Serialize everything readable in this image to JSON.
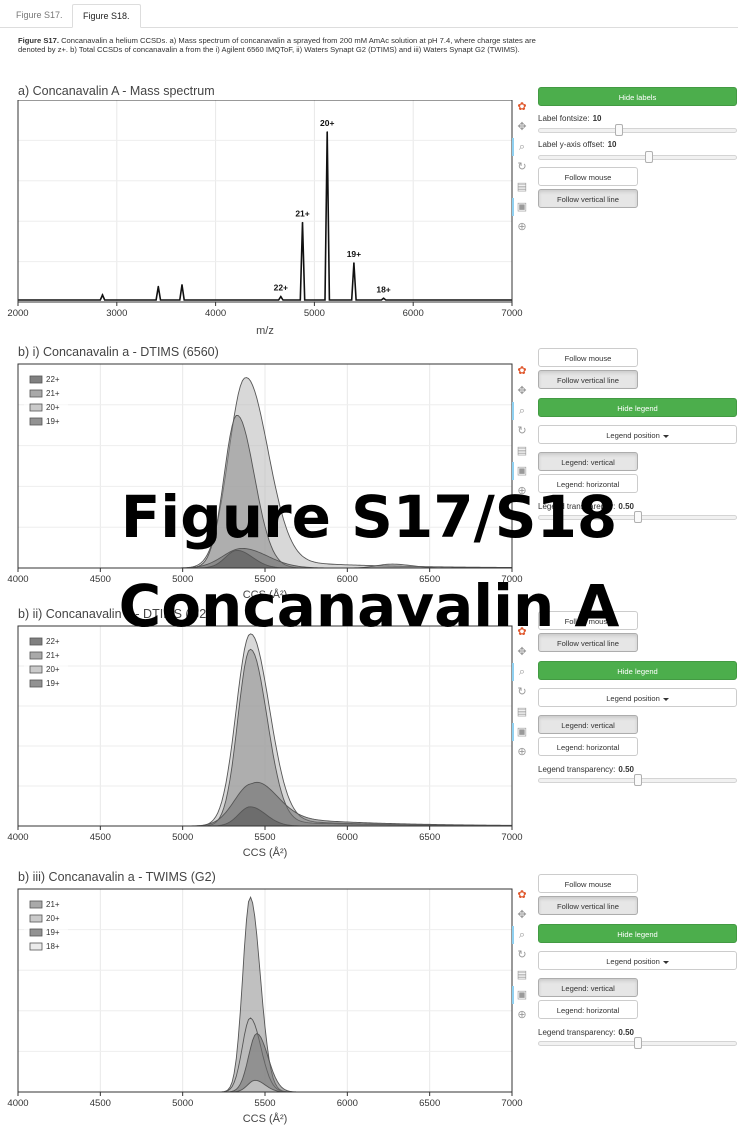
{
  "tabs": [
    {
      "label": "Figure S17."
    },
    {
      "label": "Figure S18."
    }
  ],
  "caption": {
    "lead": "Figure S17.",
    "text": "Concanavalin a helium CCSDs. a) Mass spectrum of concanavalin a sprayed from 200 mM AmAc solution at pH 7.4, where charge states are denoted by z+. b) Total CCSDs of concanavalin a from the i) Agilent 6560 IMQToF, ii) Waters Synapt G2 (DTIMS) and iii) Waters Synapt G2 (TWIMS)."
  },
  "overlay": {
    "line1": "Figure S17/S18",
    "line2": "Concanavalin A"
  },
  "toolbar_icons": [
    "bokeh-logo-icon",
    "pan-icon",
    "zoom-icon",
    "reset-icon",
    "save-icon",
    "hover-icon",
    "crosshair-icon"
  ],
  "controls": {
    "ms": {
      "hide_labels": "Hide labels",
      "fontsize_label": "Label fontsize:",
      "fontsize_value": "10",
      "offset_label": "Label y-axis offset:",
      "offset_value": "10",
      "follow_mouse": "Follow mouse",
      "follow_vertical": "Follow vertical line"
    },
    "panel": {
      "follow_mouse": "Follow mouse",
      "follow_vertical": "Follow vertical line",
      "hide_legend": "Hide legend",
      "legend_position": "Legend position",
      "legend_vertical": "Legend: vertical",
      "legend_horizontal": "Legend: horizontal",
      "transparency_label": "Legend transparency:",
      "transparency_value": "0.50"
    }
  },
  "colors": {
    "spectrum": "#111111",
    "z22": "#555555",
    "z21": "#8c8c8c",
    "z20": "#b8b8b8",
    "z19": "#6e6e6e",
    "z18": "#e4e4e4",
    "green": "#4cae4c"
  },
  "chart_data": [
    {
      "type": "line",
      "title": "a) Concanavalin A - Mass spectrum",
      "xlabel": "m/z",
      "ylabel": "",
      "xlim": [
        2000,
        7000
      ],
      "xticks": [
        2000,
        3000,
        4000,
        5000,
        6000,
        7000
      ],
      "grid": true,
      "peaks": [
        {
          "x": 2855,
          "y": 0.03,
          "label": ""
        },
        {
          "x": 3420,
          "y": 0.08,
          "label": ""
        },
        {
          "x": 3660,
          "y": 0.09,
          "label": ""
        },
        {
          "x": 4660,
          "y": 0.02,
          "label": "22+"
        },
        {
          "x": 4880,
          "y": 0.46,
          "label": "21+"
        },
        {
          "x": 5130,
          "y": 1.0,
          "label": "20+"
        },
        {
          "x": 5400,
          "y": 0.22,
          "label": "19+"
        },
        {
          "x": 5700,
          "y": 0.01,
          "label": "18+"
        }
      ]
    },
    {
      "type": "area",
      "title": "b) i) Concanavalin a - DTIMS (6560)",
      "xlabel": "CCS (Å²)",
      "xlim": [
        4000,
        7000
      ],
      "xticks": [
        4000,
        4500,
        5000,
        5500,
        6000,
        6500,
        7000
      ],
      "legend_position": "top-left",
      "series": [
        {
          "name": "22+",
          "center": 5330,
          "width": 70,
          "height": 0.09,
          "tail": 0
        },
        {
          "name": "21+",
          "center": 5330,
          "width": 78,
          "height": 0.78,
          "tail": 0
        },
        {
          "name": "20+",
          "center": 5380,
          "width": 100,
          "height": 0.97,
          "tail": 0.05
        },
        {
          "name": "19+",
          "center": 5360,
          "width": 115,
          "height": 0.1,
          "tail": 0
        }
      ],
      "extra_bump": {
        "center": 6270,
        "width": 90,
        "height": 0.02
      }
    },
    {
      "type": "area",
      "title": "b) ii) Concanavalin a - DTIMS (G2)",
      "xlabel": "CCS (Å²)",
      "xlim": [
        4000,
        7000
      ],
      "xticks": [
        4000,
        4500,
        5000,
        5500,
        6000,
        6500,
        7000
      ],
      "legend_position": "top-left",
      "series": [
        {
          "name": "22+",
          "center": 5410,
          "width": 70,
          "height": 0.1,
          "tail": 0
        },
        {
          "name": "21+",
          "center": 5410,
          "width": 75,
          "height": 0.92,
          "tail": 0.03
        },
        {
          "name": "20+",
          "center": 5410,
          "width": 85,
          "height": 1.0,
          "tail": 0.04
        },
        {
          "name": "19+",
          "center": 5420,
          "width": 105,
          "height": 0.22,
          "tail": 0.06
        }
      ]
    },
    {
      "type": "area",
      "title": "b) iii) Concanavalin a - TWIMS (G2)",
      "xlabel": "CCS (Å²)",
      "xlim": [
        4000,
        7000
      ],
      "xticks": [
        4000,
        4500,
        5000,
        5500,
        6000,
        6500,
        7000
      ],
      "legend_position": "top-left",
      "series": [
        {
          "name": "21+",
          "center": 5410,
          "width": 45,
          "height": 1.0,
          "tail": 0
        },
        {
          "name": "20+",
          "center": 5410,
          "width": 48,
          "height": 0.38,
          "tail": 0
        },
        {
          "name": "19+",
          "center": 5450,
          "width": 50,
          "height": 0.3,
          "tail": 0
        },
        {
          "name": "18+",
          "center": 5440,
          "width": 45,
          "height": 0.06,
          "tail": 0
        }
      ]
    }
  ]
}
